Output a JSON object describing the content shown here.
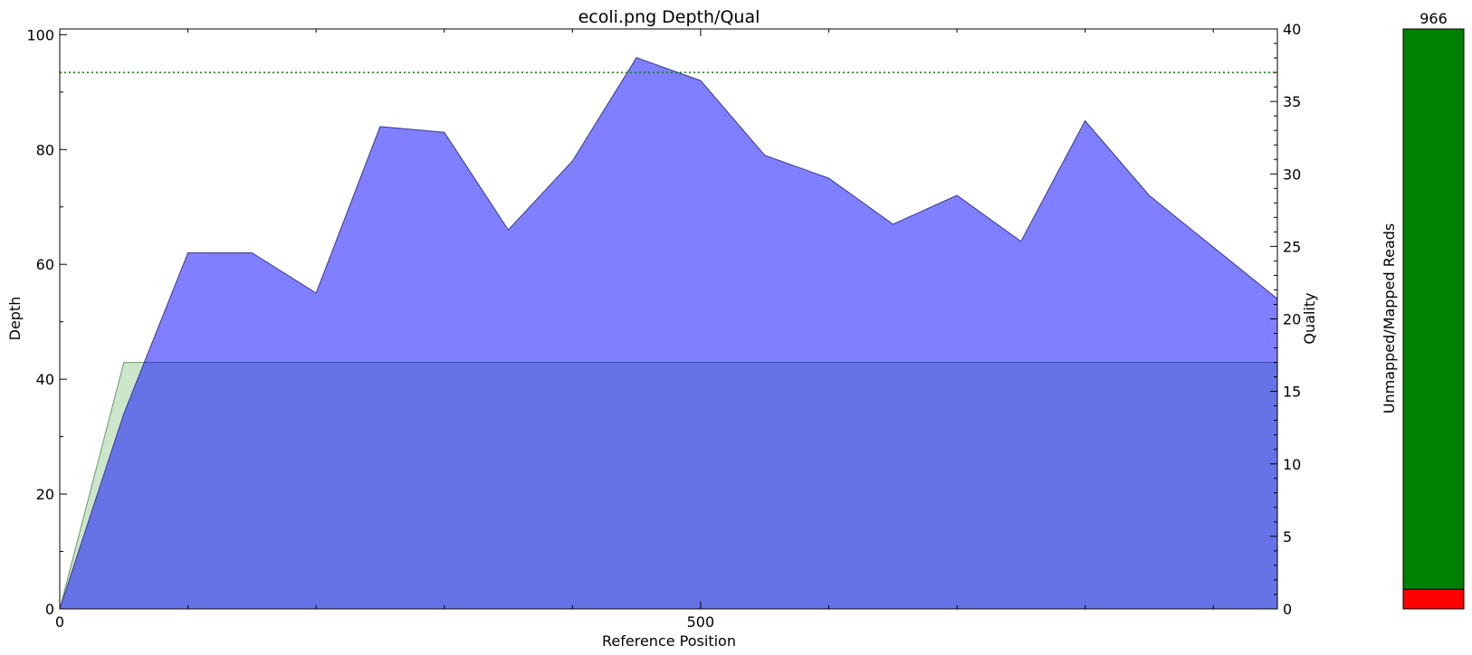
{
  "chart_data": [
    {
      "type": "area",
      "title": "ecoli.png Depth/Qual",
      "xlabel": "Reference Position",
      "ylabel": "Depth",
      "y2label": "Quality",
      "xlim": [
        0,
        950
      ],
      "ylim": [
        0,
        101
      ],
      "y2lim": [
        0,
        40
      ],
      "x_ticks": [
        0,
        500
      ],
      "y_ticks": [
        0,
        20,
        40,
        60,
        80,
        100
      ],
      "y2_ticks": [
        0,
        5,
        10,
        15,
        20,
        25,
        30,
        35,
        40
      ],
      "grid": false,
      "series": [
        {
          "axis": "left",
          "color": "#0000ff",
          "x": [
            0,
            50,
            100,
            150,
            200,
            250,
            300,
            350,
            400,
            450,
            500,
            550,
            600,
            650,
            700,
            750,
            800,
            850,
            900,
            950
          ],
          "values": [
            0,
            34,
            62,
            62,
            55,
            84,
            83,
            66,
            78,
            96,
            92,
            79,
            75,
            67,
            72,
            64,
            85,
            72,
            63,
            54
          ]
        },
        {
          "axis": "right",
          "color": "#008000",
          "x": [
            0,
            50,
            950
          ],
          "values": [
            0,
            17,
            17
          ]
        }
      ],
      "reference_line": {
        "axis": "right",
        "value": 37,
        "style": "dotted",
        "color": "#008000"
      }
    },
    {
      "type": "bar",
      "ylabel": "Unmapped/Mapped Reads",
      "stack": [
        {
          "value": 34,
          "label": "34",
          "color": "#ff0000"
        },
        {
          "value": 966,
          "label": "966",
          "color": "#008000"
        }
      ],
      "total": 1000
    }
  ]
}
